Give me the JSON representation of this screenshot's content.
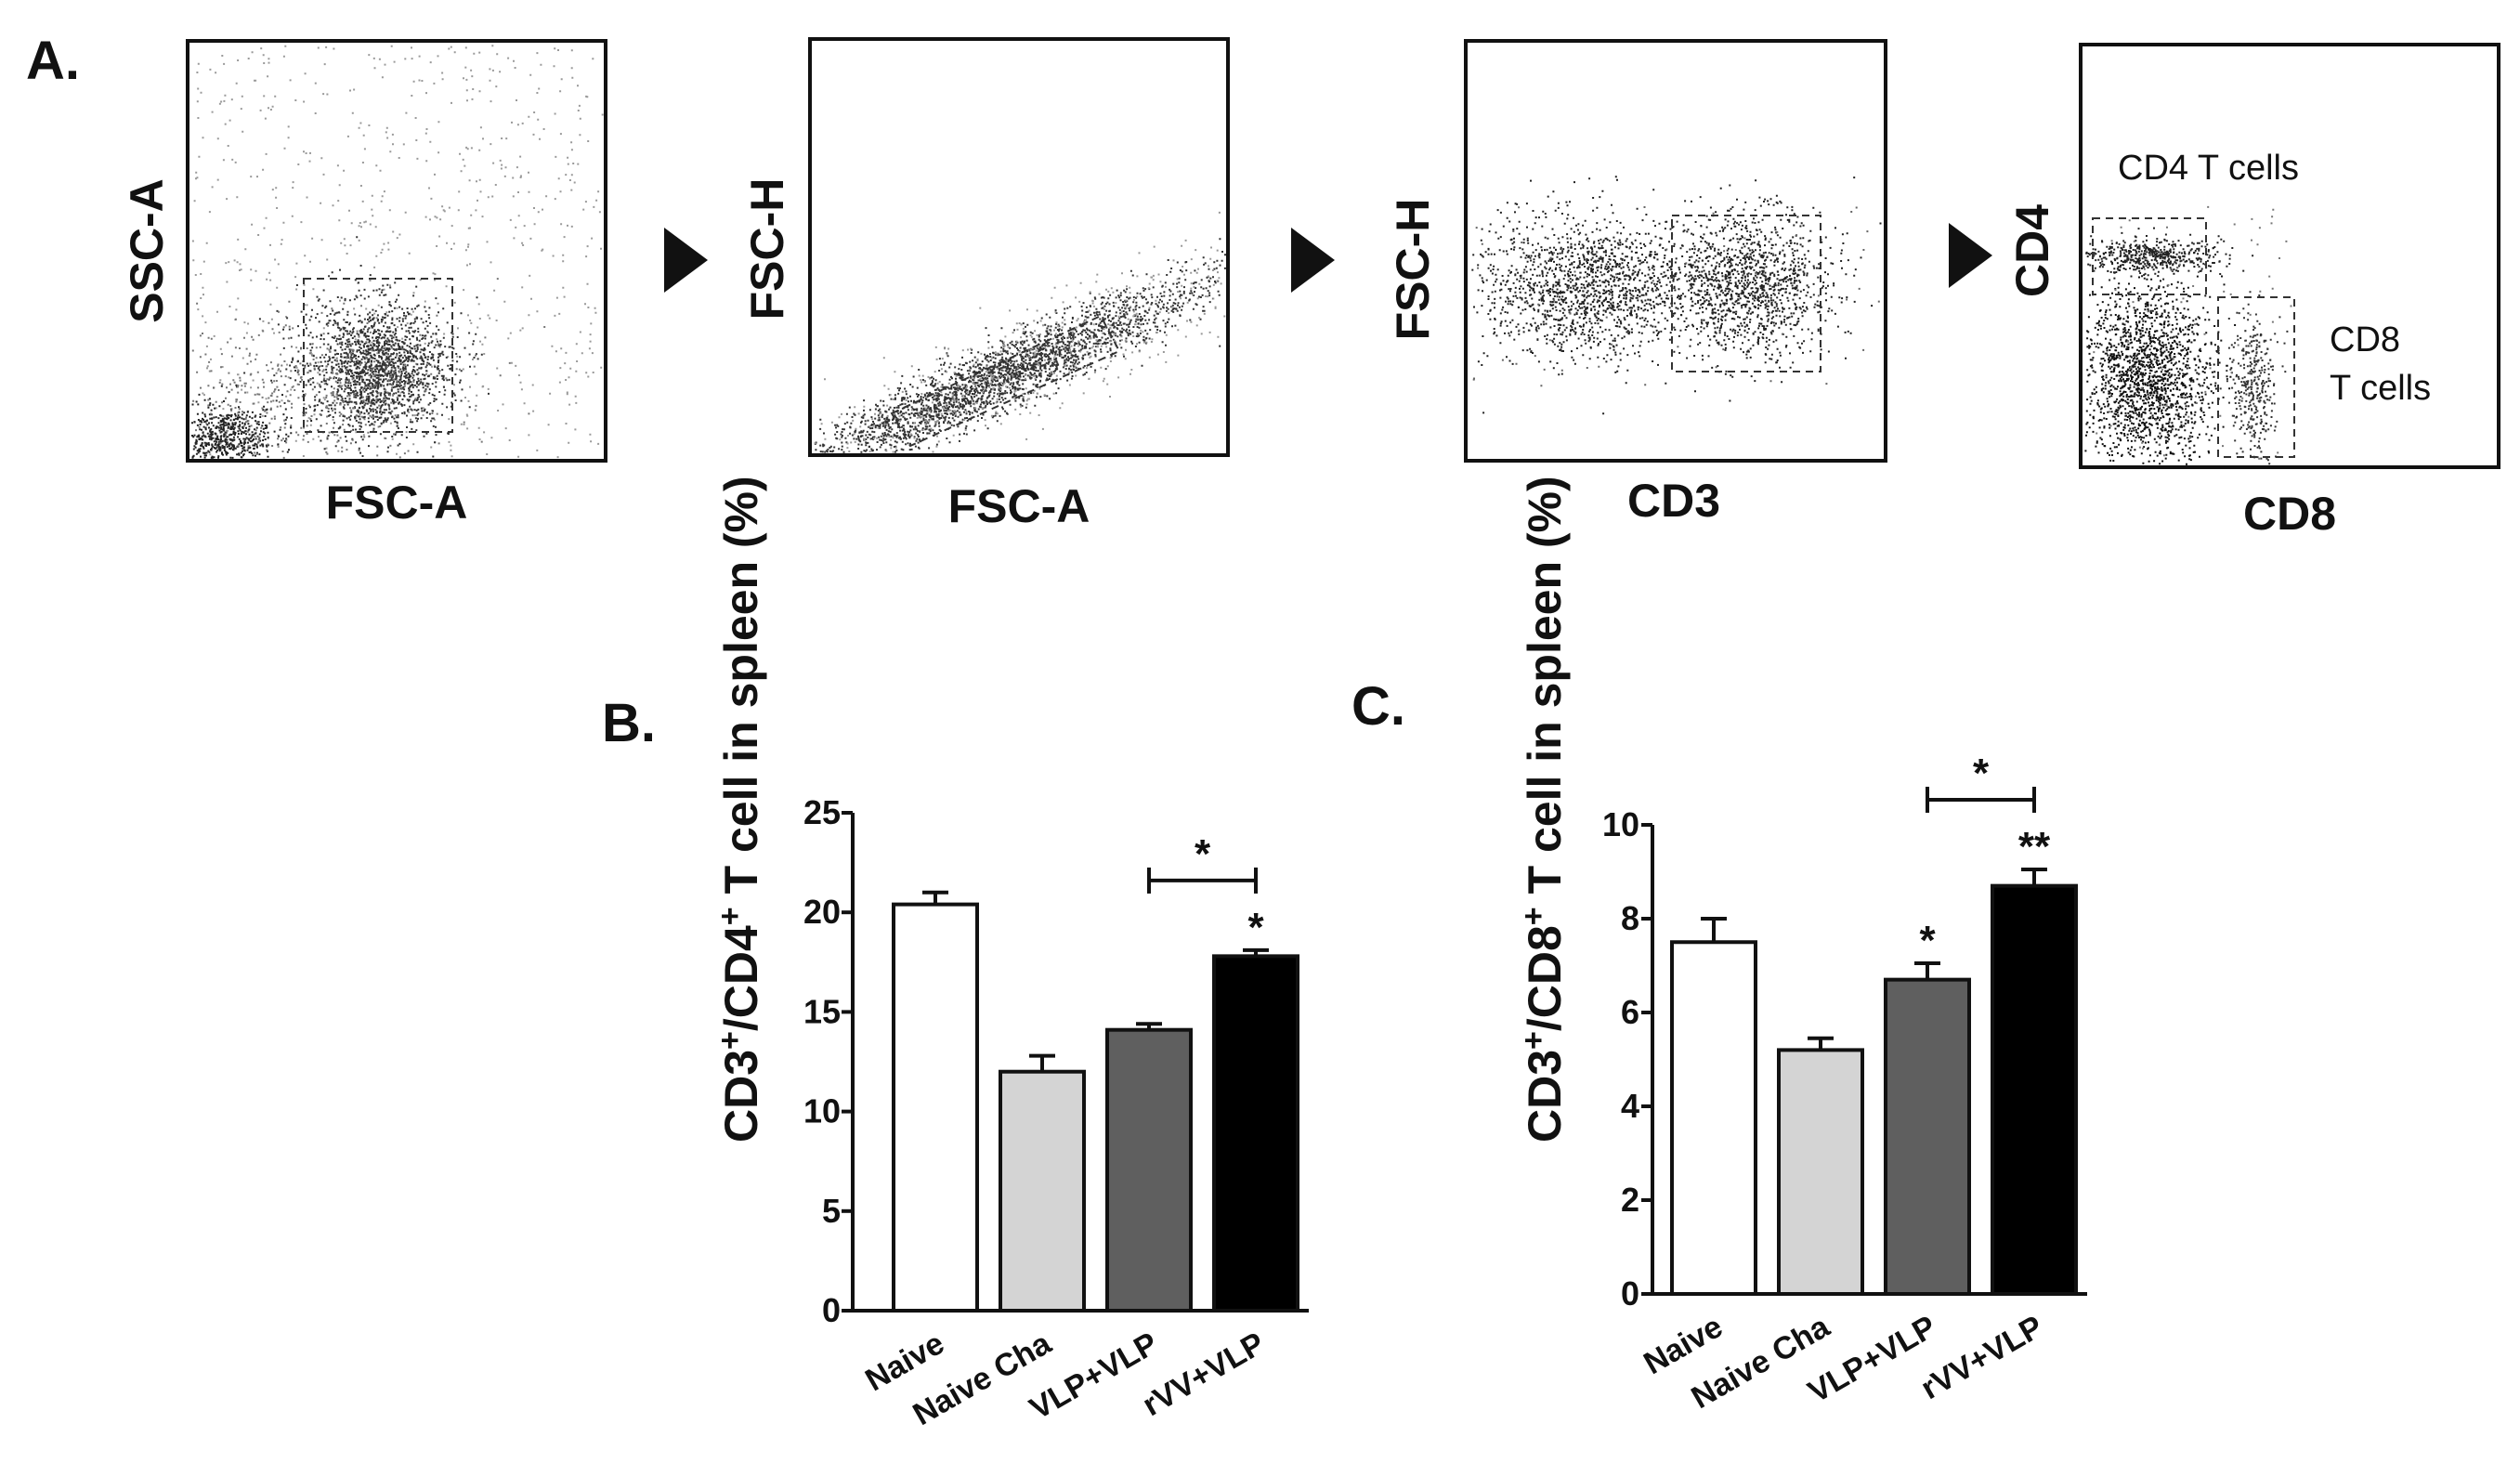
{
  "panel_labels": {
    "a": "A.",
    "b": "B.",
    "c": "C."
  },
  "facs": {
    "plots": [
      {
        "id": "p1",
        "xlabel": "FSC-A",
        "ylabel": "SSC-A"
      },
      {
        "id": "p2",
        "xlabel": "FSC-A",
        "ylabel": "FSC-H"
      },
      {
        "id": "p3",
        "xlabel": "CD3",
        "ylabel": "FSC-H"
      },
      {
        "id": "p4",
        "xlabel": "CD8",
        "ylabel": "CD4",
        "gates": [
          "CD4 T cells",
          "CD8",
          "T cells"
        ]
      }
    ]
  },
  "chart_data": [
    {
      "type": "bar",
      "panel": "B.",
      "categories": [
        "Naive",
        "Naive Cha",
        "VLP+VLP",
        "rVV+VLP"
      ],
      "values": [
        20.4,
        12.0,
        14.1,
        17.8
      ],
      "errors": [
        0.6,
        0.8,
        0.3,
        0.3
      ],
      "colors": [
        "#ffffff",
        "#d4d4d4",
        "#5f5f5f",
        "#000000"
      ],
      "ylim": [
        0,
        25
      ],
      "yticks": [
        "0",
        "5",
        "10",
        "15",
        "20",
        "25"
      ],
      "ylabel": "CD3+/CD4+ T cell in spleen (%)",
      "ylabel_parts": {
        "a": "CD3",
        "sup1": "+",
        "b": "/CD4",
        "sup2": "+",
        "c": " T cell in spleen (%)"
      },
      "bar_annotations": [
        "",
        "",
        "",
        "*"
      ],
      "bracket": {
        "from": 2,
        "to": 3,
        "label": "*"
      }
    },
    {
      "type": "bar",
      "panel": "C.",
      "categories": [
        "Naive",
        "Naive Cha",
        "VLP+VLP",
        "rVV+VLP"
      ],
      "values": [
        7.5,
        5.2,
        6.7,
        8.7
      ],
      "errors": [
        0.5,
        0.25,
        0.35,
        0.35
      ],
      "colors": [
        "#ffffff",
        "#d4d4d4",
        "#5f5f5f",
        "#000000"
      ],
      "ylim": [
        0,
        10
      ],
      "yticks": [
        "0",
        "2",
        "4",
        "6",
        "8",
        "10"
      ],
      "ylabel": "CD3+/CD8+ T cell in spleen (%)",
      "ylabel_parts": {
        "a": "CD3",
        "sup1": "+",
        "b": "/CD8",
        "sup2": "+",
        "c": " T cell in spleen (%)"
      },
      "bar_annotations": [
        "",
        "",
        "*",
        "**"
      ],
      "bracket": {
        "from": 2,
        "to": 3,
        "label": "*"
      }
    }
  ]
}
